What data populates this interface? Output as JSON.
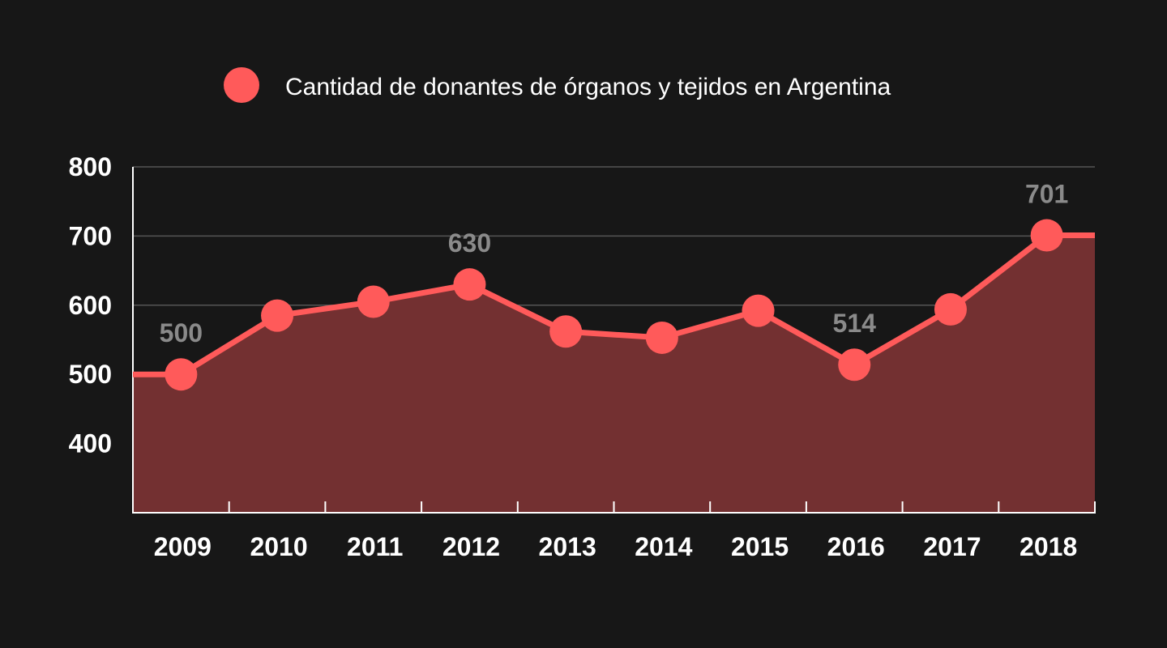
{
  "chart_data": {
    "type": "area",
    "title": "",
    "xlabel": "",
    "ylabel": "",
    "categories": [
      "2009",
      "2010",
      "2011",
      "2012",
      "2013",
      "2014",
      "2015",
      "2016",
      "2017",
      "2018"
    ],
    "series": [
      {
        "name": "Cantidad de donantes de órganos y tejidos en Argentina",
        "values": [
          500,
          585,
          605,
          630,
          562,
          553,
          592,
          514,
          594,
          701
        ],
        "color": "#ff5a5a",
        "fill_color": "#733031"
      }
    ],
    "data_labels": [
      {
        "category": "2009",
        "text": "500"
      },
      {
        "category": "2012",
        "text": "630"
      },
      {
        "category": "2016",
        "text": "514"
      },
      {
        "category": "2018",
        "text": "701"
      }
    ],
    "ylim": [
      300,
      800
    ],
    "yticks": [
      "400",
      "500",
      "600",
      "700",
      "800"
    ],
    "grid": true,
    "legend_position": "top-center"
  },
  "colors": {
    "background": "#171717",
    "grid": "#555555",
    "axis": "#ffffff",
    "data_label": "#8a8a8a"
  }
}
